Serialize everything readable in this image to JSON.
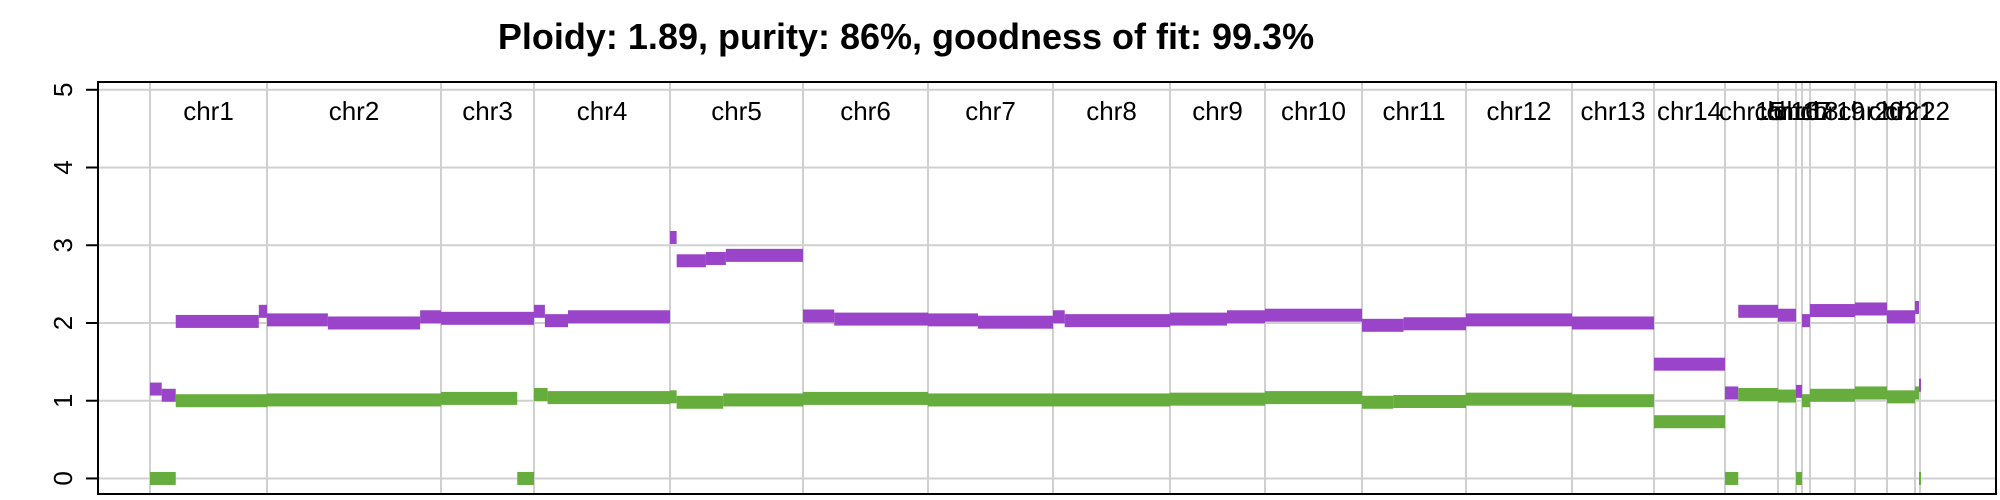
{
  "chart_data": {
    "type": "scatter",
    "title": "Ploidy: 1.89, purity: 86%, goodness of fit: 99.3%",
    "xlabel": "",
    "ylabel": "",
    "ylim": [
      -0.2,
      5.1
    ],
    "y_ticks": [
      "0",
      "1",
      "2",
      "3",
      "4",
      "5"
    ],
    "grid": true,
    "colors": {
      "major": "#9A45C9",
      "minor": "#66AD3D",
      "grid": "#D0D0D0"
    },
    "chromosomes": [
      "chr1",
      "chr2",
      "chr3",
      "chr4",
      "chr5",
      "chr6",
      "chr7",
      "chr8",
      "chr9",
      "chr10",
      "chr11",
      "chr12",
      "chr13",
      "chr14",
      "chr15",
      "chr16",
      "chr17",
      "chr18",
      "chr19",
      "chr20",
      "chr21",
      "chr22"
    ],
    "series": [
      {
        "color_key": "major",
        "segments": [
          {
            "chr": "chr1",
            "from": 0.0,
            "to": 0.1,
            "value": 1.15
          },
          {
            "chr": "chr1",
            "from": 0.1,
            "to": 0.22,
            "value": 1.07
          },
          {
            "chr": "chr1",
            "from": 0.22,
            "to": 0.93,
            "value": 2.02
          },
          {
            "chr": "chr1",
            "from": 0.93,
            "to": 1.0,
            "value": 2.15
          },
          {
            "chr": "chr2",
            "from": 0.0,
            "to": 0.35,
            "value": 2.04
          },
          {
            "chr": "chr2",
            "from": 0.35,
            "to": 0.88,
            "value": 2.0
          },
          {
            "chr": "chr2",
            "from": 0.88,
            "to": 1.0,
            "value": 2.08
          },
          {
            "chr": "chr3",
            "from": 0.0,
            "to": 1.0,
            "value": 2.06
          },
          {
            "chr": "chr4",
            "from": 0.0,
            "to": 0.08,
            "value": 2.15
          },
          {
            "chr": "chr4",
            "from": 0.08,
            "to": 0.25,
            "value": 2.03
          },
          {
            "chr": "chr4",
            "from": 0.25,
            "to": 1.0,
            "value": 2.08
          },
          {
            "chr": "chr5",
            "from": 0.0,
            "to": 0.05,
            "value": 3.1
          },
          {
            "chr": "chr5",
            "from": 0.05,
            "to": 0.27,
            "value": 2.8
          },
          {
            "chr": "chr5",
            "from": 0.27,
            "to": 0.42,
            "value": 2.83
          },
          {
            "chr": "chr5",
            "from": 0.42,
            "to": 1.0,
            "value": 2.87
          },
          {
            "chr": "chr6",
            "from": 0.0,
            "to": 0.25,
            "value": 2.09
          },
          {
            "chr": "chr6",
            "from": 0.25,
            "to": 1.0,
            "value": 2.05
          },
          {
            "chr": "chr7",
            "from": 0.0,
            "to": 0.4,
            "value": 2.04
          },
          {
            "chr": "chr7",
            "from": 0.4,
            "to": 1.0,
            "value": 2.01
          },
          {
            "chr": "chr8",
            "from": 0.0,
            "to": 0.1,
            "value": 2.08
          },
          {
            "chr": "chr8",
            "from": 0.1,
            "to": 1.0,
            "value": 2.03
          },
          {
            "chr": "chr9",
            "from": 0.0,
            "to": 0.6,
            "value": 2.05
          },
          {
            "chr": "chr9",
            "from": 0.6,
            "to": 1.0,
            "value": 2.08
          },
          {
            "chr": "chr10",
            "from": 0.0,
            "to": 1.0,
            "value": 2.1
          },
          {
            "chr": "chr11",
            "from": 0.0,
            "to": 0.4,
            "value": 1.97
          },
          {
            "chr": "chr11",
            "from": 0.4,
            "to": 1.0,
            "value": 1.99
          },
          {
            "chr": "chr12",
            "from": 0.0,
            "to": 1.0,
            "value": 2.04
          },
          {
            "chr": "chr13",
            "from": 0.0,
            "to": 1.0,
            "value": 2.0
          },
          {
            "chr": "chr14",
            "from": 0.0,
            "to": 1.0,
            "value": 1.47
          },
          {
            "chr": "chr15",
            "from": 0.0,
            "to": 0.25,
            "value": 1.1
          },
          {
            "chr": "chr15",
            "from": 0.25,
            "to": 1.0,
            "value": 2.15
          },
          {
            "chr": "chr16",
            "from": 0.0,
            "to": 1.0,
            "value": 2.1
          },
          {
            "chr": "chr17",
            "from": 0.0,
            "to": 1.0,
            "value": 1.12
          },
          {
            "chr": "chr18",
            "from": 0.0,
            "to": 1.0,
            "value": 2.03
          },
          {
            "chr": "chr19",
            "from": 0.0,
            "to": 1.0,
            "value": 2.16
          },
          {
            "chr": "chr20",
            "from": 0.0,
            "to": 1.0,
            "value": 2.18
          },
          {
            "chr": "chr21",
            "from": 0.0,
            "to": 1.0,
            "value": 2.08
          },
          {
            "chr": "chr22",
            "from": 0.0,
            "to": 0.8,
            "value": 2.2
          },
          {
            "chr": "chr22",
            "from": 0.8,
            "to": 1.0,
            "value": 1.2
          }
        ]
      },
      {
        "color_key": "minor",
        "segments": [
          {
            "chr": "chr1",
            "from": 0.0,
            "to": 0.22,
            "value": 0.0
          },
          {
            "chr": "chr1",
            "from": 0.22,
            "to": 1.0,
            "value": 1.0
          },
          {
            "chr": "chr2",
            "from": 0.0,
            "to": 1.0,
            "value": 1.01
          },
          {
            "chr": "chr3",
            "from": 0.0,
            "to": 0.82,
            "value": 1.03
          },
          {
            "chr": "chr3",
            "from": 0.82,
            "to": 1.0,
            "value": 0.0
          },
          {
            "chr": "chr4",
            "from": 0.0,
            "to": 0.1,
            "value": 1.08
          },
          {
            "chr": "chr4",
            "from": 0.1,
            "to": 1.0,
            "value": 1.04
          },
          {
            "chr": "chr5",
            "from": 0.0,
            "to": 0.05,
            "value": 1.05
          },
          {
            "chr": "chr5",
            "from": 0.05,
            "to": 0.4,
            "value": 0.98
          },
          {
            "chr": "chr5",
            "from": 0.4,
            "to": 1.0,
            "value": 1.01
          },
          {
            "chr": "chr6",
            "from": 0.0,
            "to": 1.0,
            "value": 1.03
          },
          {
            "chr": "chr7",
            "from": 0.0,
            "to": 1.0,
            "value": 1.01
          },
          {
            "chr": "chr8",
            "from": 0.0,
            "to": 1.0,
            "value": 1.01
          },
          {
            "chr": "chr9",
            "from": 0.0,
            "to": 1.0,
            "value": 1.02
          },
          {
            "chr": "chr10",
            "from": 0.0,
            "to": 1.0,
            "value": 1.04
          },
          {
            "chr": "chr11",
            "from": 0.0,
            "to": 0.3,
            "value": 0.98
          },
          {
            "chr": "chr11",
            "from": 0.3,
            "to": 1.0,
            "value": 0.99
          },
          {
            "chr": "chr12",
            "from": 0.0,
            "to": 1.0,
            "value": 1.02
          },
          {
            "chr": "chr13",
            "from": 0.0,
            "to": 1.0,
            "value": 1.0
          },
          {
            "chr": "chr14",
            "from": 0.0,
            "to": 1.0,
            "value": 0.73
          },
          {
            "chr": "chr15",
            "from": 0.0,
            "to": 0.25,
            "value": 0.0
          },
          {
            "chr": "chr15",
            "from": 0.25,
            "to": 1.0,
            "value": 1.08
          },
          {
            "chr": "chr16",
            "from": 0.0,
            "to": 1.0,
            "value": 1.06
          },
          {
            "chr": "chr17",
            "from": 0.0,
            "to": 1.0,
            "value": 0.0
          },
          {
            "chr": "chr18",
            "from": 0.0,
            "to": 1.0,
            "value": 1.0
          },
          {
            "chr": "chr19",
            "from": 0.0,
            "to": 1.0,
            "value": 1.07
          },
          {
            "chr": "chr20",
            "from": 0.0,
            "to": 1.0,
            "value": 1.1
          },
          {
            "chr": "chr21",
            "from": 0.0,
            "to": 1.0,
            "value": 1.05
          },
          {
            "chr": "chr22",
            "from": 0.0,
            "to": 0.8,
            "value": 1.1
          },
          {
            "chr": "chr22",
            "from": 0.8,
            "to": 1.0,
            "value": 0.0
          }
        ]
      }
    ]
  }
}
